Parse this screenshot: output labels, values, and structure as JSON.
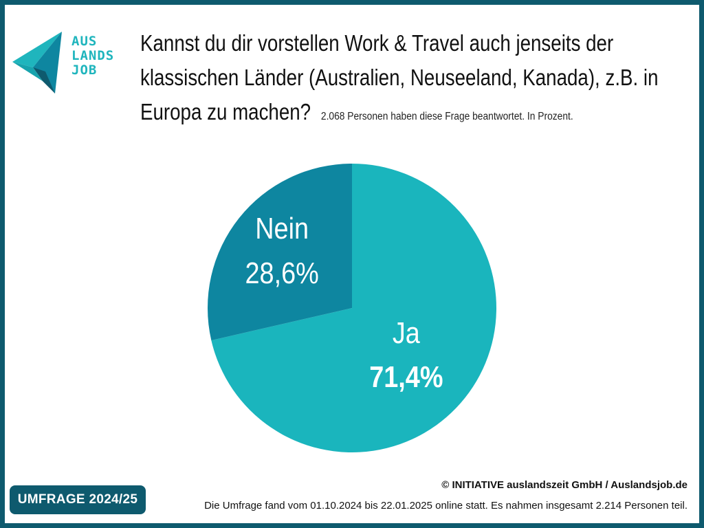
{
  "logo": {
    "lines": [
      "AUS",
      "LANDS",
      "JOB"
    ],
    "color": "#1fb5bd",
    "icon": "paper-plane-logo-icon"
  },
  "title": "Kannst du dir vorstellen Work & Travel auch jenseits der klassischen Länder (Australien, Neuseeland, Kanada), z.B. in Europa zu machen?",
  "subtitle": "2.068 Personen haben diese Frage beantwortet. In Prozent.",
  "chart_data": {
    "type": "pie",
    "title": "Kannst du dir vorstellen Work & Travel auch jenseits der klassischen Länder (Australien, Neuseeland, Kanada), z.B. in Europa zu machen?",
    "unit": "%",
    "slices": [
      {
        "label": "Ja",
        "value": 71.4,
        "value_label": "71,4%",
        "color": "#1ab5bd"
      },
      {
        "label": "Nein",
        "value": 28.6,
        "value_label": "28,6%",
        "color": "#0e86a0"
      }
    ],
    "start_angle_deg": 0,
    "direction": "clockwise",
    "legend": "none"
  },
  "badge": "UMFRAGE 2024/25",
  "copyright": "© INITIATIVE auslandszeit GmbH / Auslandsjob.de",
  "footnote": "Die Umfrage fand vom 01.10.2024 bis 22.01.2025 online statt. Es nahmen insgesamt 2.214 Personen teil.",
  "colors": {
    "frame": "#0e5a6e",
    "accent": "#1ab5bd",
    "accent_dark": "#0e86a0"
  }
}
